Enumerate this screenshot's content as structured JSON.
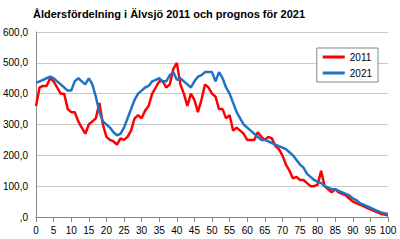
{
  "chart_data": {
    "type": "line",
    "title": "Åldersfördelning i Älvsjö 2011 och prognos för 2021",
    "x": [
      0,
      1,
      2,
      3,
      4,
      5,
      6,
      7,
      8,
      9,
      10,
      11,
      12,
      13,
      14,
      15,
      16,
      17,
      18,
      19,
      20,
      21,
      22,
      23,
      24,
      25,
      26,
      27,
      28,
      29,
      30,
      31,
      32,
      33,
      34,
      35,
      36,
      37,
      38,
      39,
      40,
      41,
      42,
      43,
      44,
      45,
      46,
      47,
      48,
      49,
      50,
      51,
      52,
      53,
      54,
      55,
      56,
      57,
      58,
      59,
      60,
      61,
      62,
      63,
      64,
      65,
      66,
      67,
      68,
      69,
      70,
      71,
      72,
      73,
      74,
      75,
      76,
      77,
      78,
      79,
      80,
      81,
      82,
      83,
      84,
      85,
      86,
      87,
      88,
      89,
      90,
      91,
      92,
      93,
      94,
      95,
      96,
      97,
      98,
      99,
      100
    ],
    "series": [
      {
        "name": "2011",
        "color": "#ff0000",
        "values": [
          360,
          420,
          425,
          425,
          450,
          440,
          420,
          400,
          400,
          350,
          340,
          340,
          310,
          290,
          270,
          300,
          310,
          320,
          370,
          300,
          260,
          250,
          245,
          235,
          255,
          250,
          260,
          280,
          320,
          330,
          320,
          345,
          360,
          400,
          420,
          440,
          440,
          420,
          430,
          480,
          500,
          430,
          400,
          360,
          400,
          380,
          340,
          380,
          430,
          420,
          400,
          390,
          350,
          350,
          320,
          330,
          280,
          290,
          280,
          270,
          250,
          250,
          250,
          275,
          260,
          250,
          260,
          255,
          230,
          220,
          200,
          170,
          150,
          125,
          130,
          120,
          120,
          110,
          100,
          100,
          105,
          150,
          100,
          90,
          80,
          90,
          80,
          75,
          70,
          60,
          50,
          45,
          40,
          35,
          30,
          25,
          20,
          15,
          10,
          8,
          5
        ]
      },
      {
        "name": "2021",
        "color": "#1f72c4",
        "values": [
          435,
          440,
          445,
          450,
          455,
          450,
          440,
          430,
          420,
          410,
          410,
          440,
          450,
          440,
          430,
          450,
          430,
          390,
          340,
          310,
          300,
          290,
          275,
          265,
          270,
          290,
          320,
          350,
          380,
          400,
          410,
          420,
          425,
          440,
          445,
          450,
          440,
          440,
          460,
          470,
          445,
          450,
          440,
          430,
          420,
          440,
          455,
          460,
          470,
          470,
          470,
          440,
          470,
          450,
          420,
          400,
          370,
          340,
          320,
          300,
          290,
          280,
          270,
          260,
          250,
          250,
          245,
          240,
          235,
          230,
          225,
          220,
          210,
          200,
          185,
          170,
          160,
          140,
          130,
          120,
          115,
          110,
          100,
          95,
          90,
          90,
          85,
          80,
          75,
          70,
          60,
          55,
          45,
          40,
          35,
          30,
          25,
          20,
          15,
          12,
          10
        ]
      }
    ],
    "xlim": [
      0,
      100
    ],
    "xticks": [
      0,
      5,
      10,
      15,
      20,
      25,
      30,
      35,
      40,
      45,
      50,
      55,
      60,
      65,
      70,
      75,
      80,
      85,
      90,
      95,
      100
    ],
    "ylim": [
      0,
      600
    ],
    "yticks": [
      {
        "value": 0,
        "label": ",0"
      },
      {
        "value": 100,
        "label": "100,0"
      },
      {
        "value": 200,
        "label": "200,0"
      },
      {
        "value": 300,
        "label": "300,0"
      },
      {
        "value": 400,
        "label": "400,0"
      },
      {
        "value": 500,
        "label": "500,0"
      },
      {
        "value": 600,
        "label": "600,0"
      }
    ],
    "grid": true,
    "legend": "upper right"
  }
}
